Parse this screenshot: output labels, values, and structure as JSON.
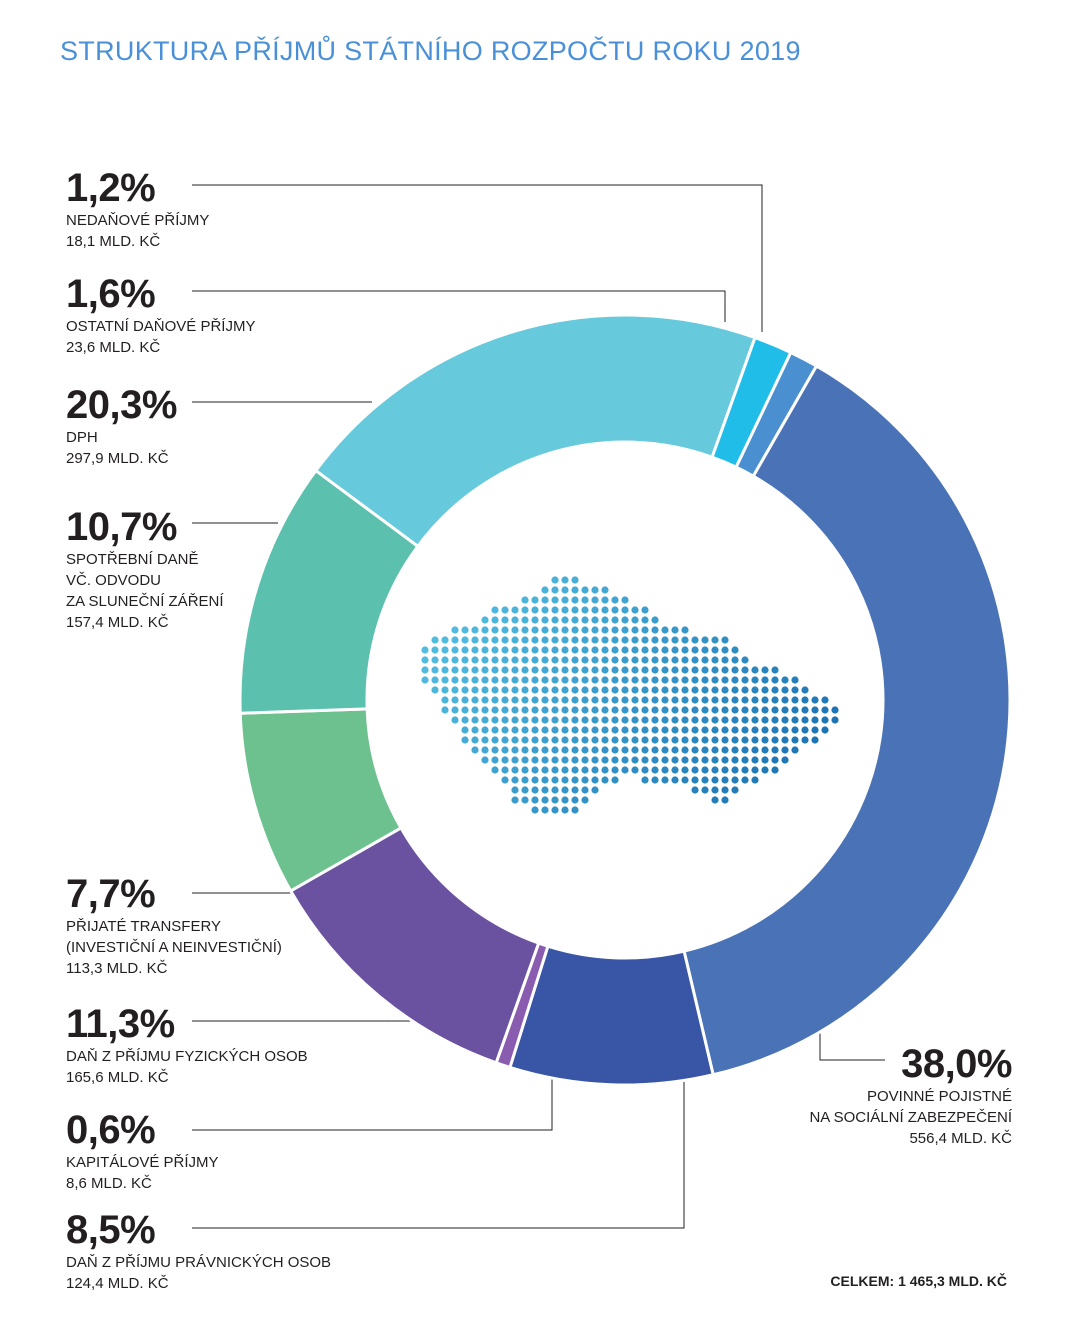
{
  "title": "STRUKTURA PŘÍJMŮ STÁTNÍHO ROZPOČTU ROKU 2019",
  "total": "CELKEM: 1 465,3 MLD. KČ",
  "colors": {
    "title": "#4a90d9",
    "dots_light": "#5bc8e6",
    "dots_dark": "#1a6fb0"
  },
  "chart_data": {
    "type": "pie",
    "variant": "donut",
    "title": "STRUKTURA PŘÍJMŮ STÁTNÍHO ROZPOČTU ROKU 2019",
    "unit": "MLD. KČ",
    "total": 1465.3,
    "slices": [
      {
        "id": "nedanove",
        "percent": 1.2,
        "percent_label": "1,2%",
        "name": [
          "NEDAŇOVÉ PŘÍJMY"
        ],
        "amount_label": "18,1 MLD. KČ",
        "value": 18.1,
        "color": "#4a90d0"
      },
      {
        "id": "pojistne",
        "percent": 38.0,
        "percent_label": "38,0%",
        "name": [
          "POVINNÉ POJISTNÉ",
          "NA SOCIÁLNÍ ZABEZPEČENÍ"
        ],
        "amount_label": "556,4 MLD. KČ",
        "value": 556.4,
        "color": "#4a72b6"
      },
      {
        "id": "dppo",
        "percent": 8.5,
        "percent_label": "8,5%",
        "name": [
          "DAŇ Z PŘÍJMU PRÁVNICKÝCH OSOB"
        ],
        "amount_label": "124,4 MLD. KČ",
        "value": 124.4,
        "color": "#3956a6"
      },
      {
        "id": "kapitalove",
        "percent": 0.6,
        "percent_label": "0,6%",
        "name": [
          "KAPITÁLOVÉ PŘÍJMY"
        ],
        "amount_label": "8,6 MLD. KČ",
        "value": 8.6,
        "color": "#8a5cb0"
      },
      {
        "id": "dpfo",
        "percent": 11.3,
        "percent_label": "11,3%",
        "name": [
          "DAŇ Z PŘÍJMU FYZICKÝCH OSOB"
        ],
        "amount_label": "165,6 MLD. KČ",
        "value": 165.6,
        "color": "#6b52a0"
      },
      {
        "id": "transfery",
        "percent": 7.7,
        "percent_label": "7,7%",
        "name": [
          "PŘIJATÉ TRANSFERY",
          "(INVESTIČNÍ A NEINVESTIČNÍ)"
        ],
        "amount_label": "113,3 MLD. KČ",
        "value": 113.3,
        "color": "#6cc18e"
      },
      {
        "id": "spotrebni",
        "percent": 10.7,
        "percent_label": "10,7%",
        "name": [
          "SPOTŘEBNÍ DANĚ",
          "VČ. ODVODU",
          "ZA SLUNEČNÍ ZÁŘENÍ"
        ],
        "amount_label": "157,4 MLD. KČ",
        "value": 157.4,
        "color": "#5bc0ad"
      },
      {
        "id": "dph",
        "percent": 20.3,
        "percent_label": "20,3%",
        "name": [
          "DPH"
        ],
        "amount_label": "297,9 MLD. KČ",
        "value": 297.9,
        "color": "#66c9dc"
      },
      {
        "id": "ostatni",
        "percent": 1.6,
        "percent_label": "1,6%",
        "name": [
          "OSTATNÍ DAŇOVÉ PŘÍJMY"
        ],
        "amount_label": "23,6 MLD. KČ",
        "value": 23.6,
        "color": "#20bde8"
      }
    ]
  }
}
